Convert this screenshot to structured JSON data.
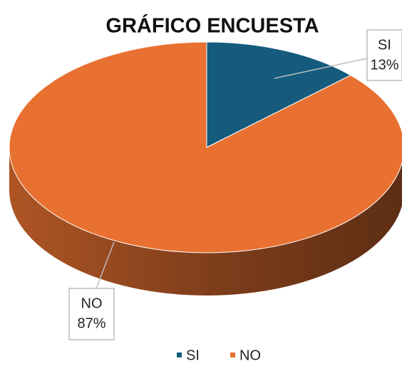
{
  "chart_data": {
    "type": "pie",
    "title": "GRÁFICO ENCUESTA",
    "categories": [
      "SI",
      "NO"
    ],
    "values": [
      13,
      87
    ],
    "value_labels": [
      "13%",
      "87%"
    ],
    "colors": [
      "#145b7d",
      "#e87131"
    ],
    "legend": "bottom"
  }
}
